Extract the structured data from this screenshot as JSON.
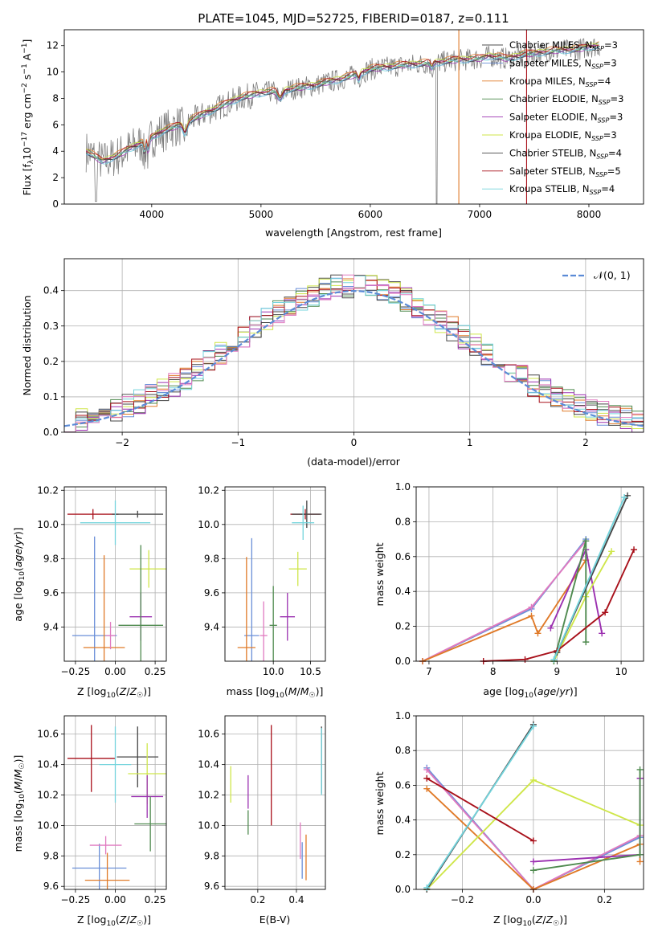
{
  "title": "PLATE=1045, MJD=52725, FIBERID=0187, z=0.111",
  "colors": {
    "chabrier_miles": "#4d4d4d",
    "salpeter_miles": "#6a8fd8",
    "kroupa_miles": "#e07a28",
    "chabrier_elodie": "#4f8a4f",
    "salpeter_elodie": "#9b30b0",
    "kroupa_elodie": "#cfe64a",
    "chabrier_stelib": "#454545",
    "salpeter_stelib": "#a8101a",
    "kroupa_stelib": "#74d4dc",
    "pink": "#e07ac0",
    "data": "#808080",
    "normal": "#5b8bd6"
  },
  "chart_data": [
    {
      "id": "spectrum",
      "type": "line",
      "xlabel": "wavelength [Angstrom, rest frame]",
      "ylabel": "Flux [f_λ10^-17 erg cm^-2 s^-1 A^-1]",
      "xlim": [
        3200,
        8500
      ],
      "ylim": [
        0,
        13.2
      ],
      "xticks": [
        4000,
        5000,
        6000,
        7000,
        8000
      ],
      "yticks": [
        0,
        2,
        4,
        6,
        8,
        10,
        12
      ],
      "legend_position": "top-right",
      "legend": [
        {
          "label": "Chabrier MILES, N_SSP=3",
          "color_key": "chabrier_miles"
        },
        {
          "label": "Salpeter MILES, N_SSP=3",
          "color_key": "salpeter_miles"
        },
        {
          "label": "Kroupa MILES, N_SSP=4",
          "color_key": "kroupa_miles"
        },
        {
          "label": "Chabrier ELODIE, N_SSP=3",
          "color_key": "chabrier_elodie"
        },
        {
          "label": "Salpeter ELODIE, N_SSP=3",
          "color_key": "salpeter_elodie"
        },
        {
          "label": "Kroupa ELODIE, N_SSP=3",
          "color_key": "kroupa_elodie"
        },
        {
          "label": "Chabrier STELIB, N_SSP=4",
          "color_key": "chabrier_stelib"
        },
        {
          "label": "Salpeter STELIB, N_SSP=5",
          "color_key": "salpeter_stelib"
        },
        {
          "label": "Kroupa STELIB, N_SSP=4",
          "color_key": "kroupa_stelib"
        }
      ],
      "continuum": [
        [
          3400,
          4.0
        ],
        [
          3550,
          3.2
        ],
        [
          3700,
          3.7
        ],
        [
          3800,
          4.2
        ],
        [
          3950,
          4.8
        ],
        [
          4100,
          5.5
        ],
        [
          4300,
          6.1
        ],
        [
          4500,
          6.9
        ],
        [
          4800,
          8.0
        ],
        [
          5000,
          8.4
        ],
        [
          5200,
          8.6
        ],
        [
          5500,
          9.0
        ],
        [
          5800,
          9.6
        ],
        [
          6000,
          10.2
        ],
        [
          6300,
          10.5
        ],
        [
          6600,
          10.7
        ],
        [
          6800,
          10.9
        ],
        [
          7000,
          11.0
        ],
        [
          7100,
          11.2
        ],
        [
          7250,
          11.0
        ],
        [
          7400,
          11.3
        ],
        [
          7700,
          11.6
        ],
        [
          7900,
          11.7
        ],
        [
          8000,
          11.9
        ],
        [
          8100,
          12.0
        ]
      ],
      "model_offsets": [
        0.0,
        -0.15,
        0.35,
        0.1,
        -0.1,
        0.2,
        -0.05,
        0.25,
        -0.2
      ],
      "vertical_lines": [
        {
          "x": 6810,
          "color_key": "kroupa_miles"
        },
        {
          "x": 7430,
          "color_key": "salpeter_stelib"
        }
      ]
    },
    {
      "id": "residual-histogram",
      "type": "line",
      "xlabel": "(data-model)/error",
      "ylabel": "Normed distribution",
      "xlim": [
        -2.5,
        2.5
      ],
      "ylim": [
        0,
        0.49
      ],
      "xticks": [
        -2,
        -1,
        0,
        1,
        2
      ],
      "yticks": [
        0.0,
        0.1,
        0.2,
        0.3,
        0.4
      ],
      "grid": true,
      "legend_position": "top-right",
      "normal_label": "𝒩(0, 1)",
      "bin_width": 0.1
    },
    {
      "id": "age-vs-metallicity",
      "type": "scatter",
      "xlabel": "Z [log10(Z/Z☉)]",
      "ylabel": "age [log10(age/yr)]",
      "xlim": [
        -0.32,
        0.32
      ],
      "ylim": [
        9.2,
        10.22
      ],
      "xticks": [
        -0.25,
        0.0,
        0.25
      ],
      "yticks": [
        9.4,
        9.6,
        9.8,
        10.0,
        10.2
      ],
      "grid": true,
      "points": [
        {
          "x": -0.14,
          "y": 10.06,
          "xerr": 0.16,
          "yerr": 0.03,
          "color_key": "salpeter_stelib"
        },
        {
          "x": 0.14,
          "y": 10.06,
          "xerr": 0.16,
          "yerr": 0.02,
          "color_key": "chabrier_stelib"
        },
        {
          "x": 0.0,
          "y": 10.01,
          "xerr": 0.22,
          "yerr": 0.13,
          "color_key": "kroupa_stelib"
        },
        {
          "x": 0.21,
          "y": 9.74,
          "xerr": 0.12,
          "yerr": 0.11,
          "color_key": "kroupa_elodie"
        },
        {
          "x": 0.16,
          "y": 9.46,
          "xerr": 0.07,
          "yerr": 0.14,
          "color_key": "salpeter_elodie"
        },
        {
          "x": 0.16,
          "y": 9.41,
          "xerr": 0.14,
          "yerr": 0.47,
          "color_key": "chabrier_elodie"
        },
        {
          "x": -0.13,
          "y": 9.35,
          "xerr": 0.14,
          "yerr": 0.58,
          "color_key": "salpeter_miles"
        },
        {
          "x": -0.07,
          "y": 9.28,
          "xerr": 0.13,
          "yerr": 0.54,
          "color_key": "kroupa_miles"
        },
        {
          "x": -0.03,
          "y": 9.35,
          "xerr": 0.03,
          "yerr": 0.08,
          "color_key": "pink"
        }
      ]
    },
    {
      "id": "age-vs-mass",
      "type": "scatter",
      "xlabel": "mass [log10(M/M☉)]",
      "ylabel": "",
      "xlim": [
        9.35,
        10.7
      ],
      "ylim": [
        9.2,
        10.22
      ],
      "xticks": [
        10.0,
        10.5
      ],
      "yticks": [
        9.4,
        9.6,
        9.8,
        10.0,
        10.2
      ],
      "grid": true,
      "points": [
        {
          "x": 10.43,
          "y": 10.06,
          "xerr": 0.2,
          "yerr": 0.03,
          "color_key": "salpeter_stelib"
        },
        {
          "x": 10.45,
          "y": 10.06,
          "xerr": 0.2,
          "yerr": 0.08,
          "color_key": "chabrier_stelib"
        },
        {
          "x": 10.4,
          "y": 10.01,
          "xerr": 0.15,
          "yerr": 0.1,
          "color_key": "kroupa_stelib"
        },
        {
          "x": 10.33,
          "y": 9.74,
          "xerr": 0.12,
          "yerr": 0.1,
          "color_key": "kroupa_elodie"
        },
        {
          "x": 10.19,
          "y": 9.46,
          "xerr": 0.1,
          "yerr": 0.14,
          "color_key": "salpeter_elodie"
        },
        {
          "x": 10.0,
          "y": 9.41,
          "xerr": 0.05,
          "yerr": 0.23,
          "color_key": "chabrier_elodie"
        },
        {
          "x": 9.71,
          "y": 9.35,
          "xerr": 0.1,
          "yerr": 0.57,
          "color_key": "salpeter_miles"
        },
        {
          "x": 9.64,
          "y": 9.28,
          "xerr": 0.12,
          "yerr": 0.53,
          "color_key": "kroupa_miles"
        },
        {
          "x": 9.87,
          "y": 9.35,
          "xerr": 0.05,
          "yerr": 0.2,
          "color_key": "pink"
        }
      ]
    },
    {
      "id": "mass-weight-vs-age",
      "type": "line",
      "xlabel": "age [log10(age/yr)]",
      "ylabel": "mass weight",
      "xlim": [
        6.8,
        10.35
      ],
      "ylim": [
        0,
        1.0
      ],
      "xticks": [
        7,
        8,
        9,
        10
      ],
      "yticks": [
        0.0,
        0.2,
        0.4,
        0.6,
        0.8,
        1.0
      ],
      "grid": true,
      "series": [
        {
          "color_key": "salpeter_miles",
          "x": [
            6.9,
            8.6,
            9.45
          ],
          "y": [
            0.0,
            0.3,
            0.7
          ]
        },
        {
          "color_key": "pink",
          "x": [
            6.9,
            8.6,
            9.45
          ],
          "y": [
            0.0,
            0.31,
            0.69
          ]
        },
        {
          "color_key": "kroupa_miles",
          "x": [
            6.9,
            8.6,
            8.7,
            9.45
          ],
          "y": [
            0.0,
            0.26,
            0.16,
            0.58
          ]
        },
        {
          "color_key": "salpeter_elodie",
          "x": [
            8.9,
            9.45,
            9.7
          ],
          "y": [
            0.19,
            0.64,
            0.16
          ]
        },
        {
          "color_key": "kroupa_elodie",
          "x": [
            8.95,
            9.45,
            9.85
          ],
          "y": [
            0.0,
            0.37,
            0.63
          ]
        },
        {
          "color_key": "chabrier_elodie",
          "x": [
            8.95,
            9.45,
            9.45
          ],
          "y": [
            0.0,
            0.69,
            0.11
          ]
        },
        {
          "color_key": "salpeter_stelib",
          "x": [
            7.85,
            8.5,
            9.0,
            9.75,
            10.2
          ],
          "y": [
            0.0,
            0.01,
            0.06,
            0.28,
            0.64
          ]
        },
        {
          "color_key": "chabrier_stelib",
          "x": [
            9.0,
            10.1
          ],
          "y": [
            0.05,
            0.95
          ]
        },
        {
          "color_key": "kroupa_stelib",
          "x": [
            8.95,
            10.05
          ],
          "y": [
            0.01,
            0.94
          ]
        }
      ]
    },
    {
      "id": "mass-vs-metallicity",
      "type": "scatter",
      "xlabel": "Z [log10(Z/Z☉)]",
      "ylabel": "mass [log10(M/M☉)]",
      "xlim": [
        -0.32,
        0.32
      ],
      "ylim": [
        9.58,
        10.72
      ],
      "xticks": [
        -0.25,
        0.0,
        0.25
      ],
      "yticks": [
        9.6,
        9.8,
        10.0,
        10.2,
        10.4,
        10.6
      ],
      "grid": true,
      "points": [
        {
          "x": -0.15,
          "y": 10.44,
          "xerr": 0.15,
          "yerr": 0.22,
          "color_key": "salpeter_stelib"
        },
        {
          "x": 0.14,
          "y": 10.45,
          "xerr": 0.13,
          "yerr": 0.2,
          "color_key": "chabrier_stelib"
        },
        {
          "x": 0.0,
          "y": 10.4,
          "xerr": 0.1,
          "yerr": 0.25,
          "color_key": "kroupa_stelib"
        },
        {
          "x": 0.2,
          "y": 10.34,
          "xerr": 0.12,
          "yerr": 0.2,
          "color_key": "kroupa_elodie"
        },
        {
          "x": 0.2,
          "y": 10.19,
          "xerr": 0.1,
          "yerr": 0.14,
          "color_key": "salpeter_elodie"
        },
        {
          "x": 0.22,
          "y": 10.01,
          "xerr": 0.1,
          "yerr": 0.18,
          "color_key": "chabrier_elodie"
        },
        {
          "x": -0.1,
          "y": 9.72,
          "xerr": 0.17,
          "yerr": 0.16,
          "color_key": "salpeter_miles"
        },
        {
          "x": -0.05,
          "y": 9.64,
          "xerr": 0.14,
          "yerr": 0.18,
          "color_key": "kroupa_miles"
        },
        {
          "x": -0.06,
          "y": 9.87,
          "xerr": 0.1,
          "yerr": 0.06,
          "color_key": "pink"
        }
      ]
    },
    {
      "id": "mass-vs-ebv",
      "type": "scatter",
      "xlabel": "E(B-V)",
      "ylabel": "",
      "xlim": [
        0.03,
        0.55
      ],
      "ylim": [
        9.58,
        10.72
      ],
      "xticks": [
        0.2,
        0.4
      ],
      "yticks": [
        9.6,
        9.8,
        10.0,
        10.2,
        10.4,
        10.6
      ],
      "grid": true,
      "points": [
        {
          "x": 0.27,
          "y": 10.33,
          "xerr": 0.0,
          "yerr": 0.33,
          "color_key": "salpeter_stelib"
        },
        {
          "x": 0.53,
          "y": 10.43,
          "xerr": 0.0,
          "yerr": 0.22,
          "color_key": "chabrier_stelib"
        },
        {
          "x": 0.53,
          "y": 10.42,
          "xerr": 0.0,
          "yerr": 0.22,
          "color_key": "kroupa_stelib"
        },
        {
          "x": 0.06,
          "y": 10.27,
          "xerr": 0.0,
          "yerr": 0.12,
          "color_key": "kroupa_elodie"
        },
        {
          "x": 0.15,
          "y": 10.22,
          "xerr": 0.0,
          "yerr": 0.11,
          "color_key": "salpeter_elodie"
        },
        {
          "x": 0.15,
          "y": 10.02,
          "xerr": 0.0,
          "yerr": 0.08,
          "color_key": "chabrier_elodie"
        },
        {
          "x": 0.43,
          "y": 9.77,
          "xerr": 0.0,
          "yerr": 0.12,
          "color_key": "salpeter_miles"
        },
        {
          "x": 0.45,
          "y": 9.79,
          "xerr": 0.0,
          "yerr": 0.15,
          "color_key": "kroupa_miles"
        },
        {
          "x": 0.42,
          "y": 9.9,
          "xerr": 0.0,
          "yerr": 0.12,
          "color_key": "pink"
        }
      ]
    },
    {
      "id": "mass-weight-vs-metallicity",
      "type": "line",
      "xlabel": "Z [log10(Z/Z☉)]",
      "ylabel": "mass weight",
      "xlim": [
        -0.33,
        0.31
      ],
      "ylim": [
        0,
        1.0
      ],
      "xticks": [
        -0.2,
        0.0,
        0.2
      ],
      "yticks": [
        0.0,
        0.2,
        0.4,
        0.6,
        0.8,
        1.0
      ],
      "grid": true,
      "series": [
        {
          "color_key": "salpeter_miles",
          "x": [
            -0.3,
            0.0,
            0.3
          ],
          "y": [
            0.7,
            0.0,
            0.3
          ]
        },
        {
          "color_key": "pink",
          "x": [
            -0.3,
            0.0,
            0.3
          ],
          "y": [
            0.69,
            0.0,
            0.31
          ]
        },
        {
          "color_key": "kroupa_miles",
          "x": [
            -0.3,
            0.0,
            0.3,
            0.3
          ],
          "y": [
            0.58,
            0.0,
            0.26,
            0.16
          ]
        },
        {
          "color_key": "salpeter_elodie",
          "x": [
            0.0,
            0.3,
            0.3
          ],
          "y": [
            0.16,
            0.2,
            0.64
          ]
        },
        {
          "color_key": "kroupa_elodie",
          "x": [
            -0.3,
            0.0,
            0.3
          ],
          "y": [
            0.0,
            0.63,
            0.37
          ]
        },
        {
          "color_key": "chabrier_elodie",
          "x": [
            0.0,
            0.3,
            0.3
          ],
          "y": [
            0.11,
            0.2,
            0.69
          ]
        },
        {
          "color_key": "salpeter_stelib",
          "x": [
            -0.3,
            0.0
          ],
          "y": [
            0.64,
            0.28
          ]
        },
        {
          "color_key": "chabrier_stelib",
          "x": [
            -0.3,
            0.0
          ],
          "y": [
            0.0,
            0.95
          ]
        },
        {
          "color_key": "kroupa_stelib",
          "x": [
            -0.3,
            0.0
          ],
          "y": [
            0.01,
            0.94
          ]
        }
      ]
    }
  ]
}
